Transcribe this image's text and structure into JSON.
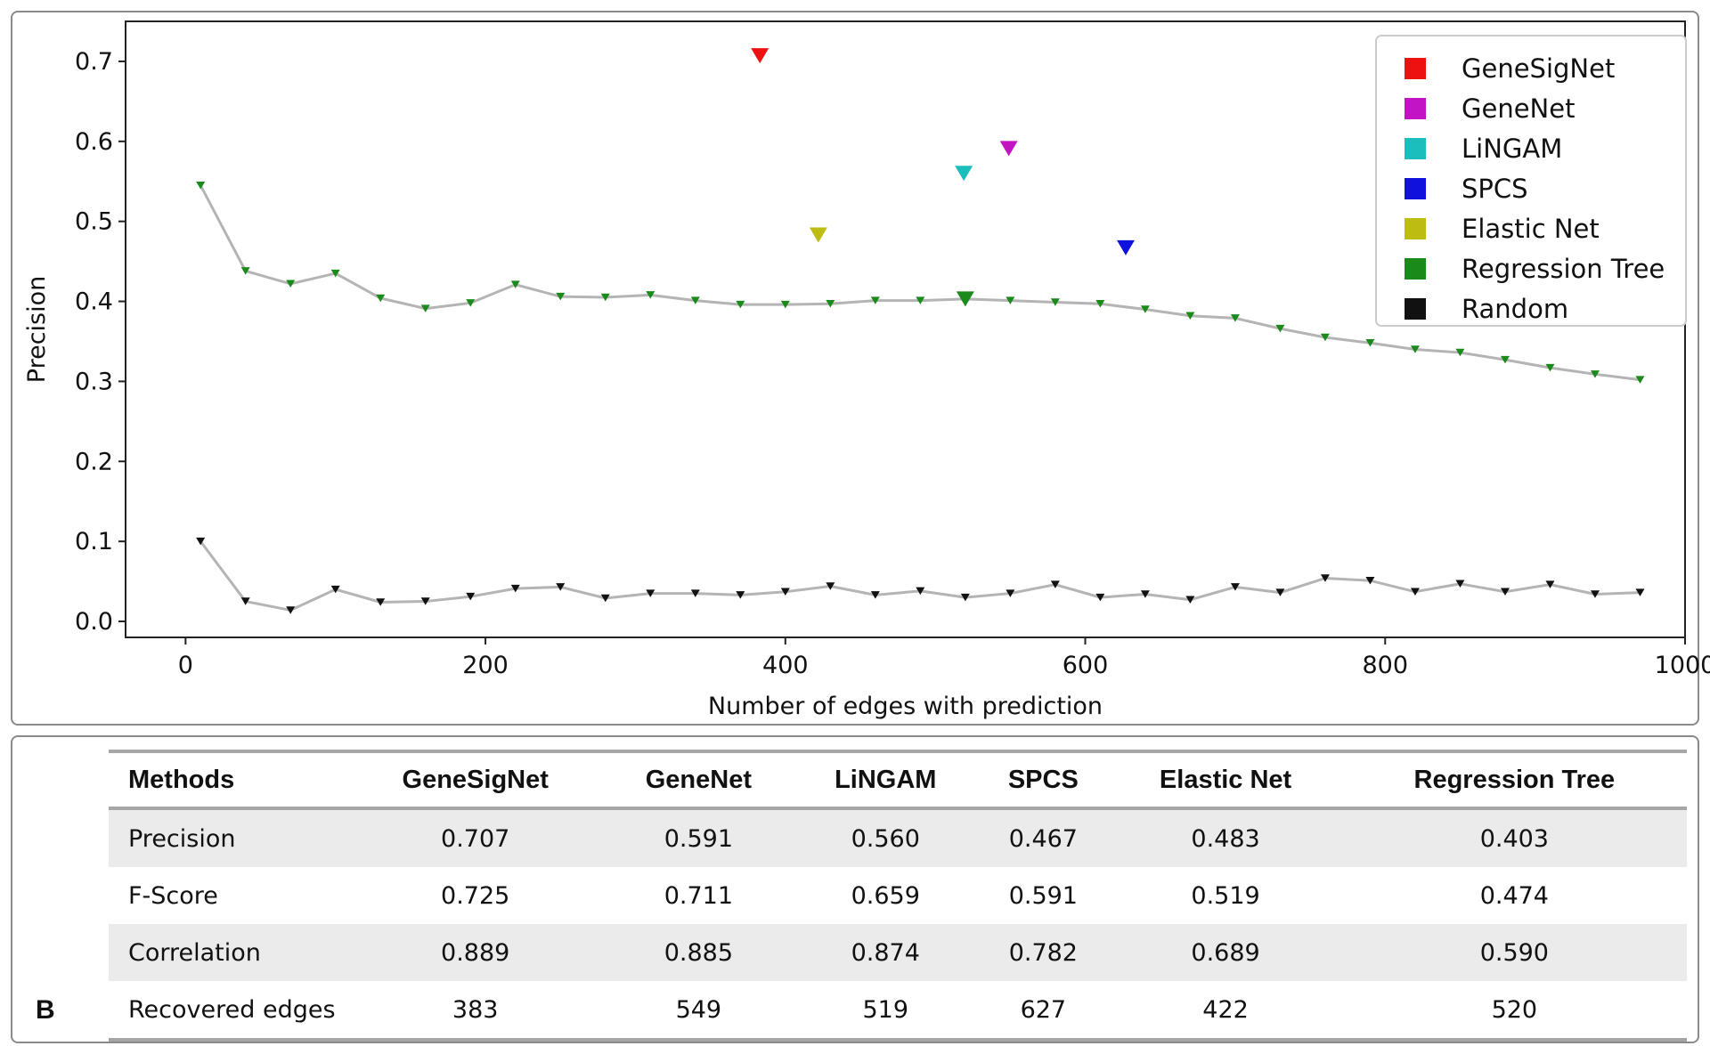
{
  "chart_data": {
    "type": "line",
    "title": "",
    "xlabel": "Number of edges with prediction",
    "ylabel": "Precision",
    "xlim": [
      -40,
      1000
    ],
    "ylim": [
      -0.02,
      0.75
    ],
    "xticks": [
      "0",
      "200",
      "400",
      "600",
      "800",
      "1000"
    ],
    "yticks": [
      "0.0",
      "0.1",
      "0.2",
      "0.3",
      "0.4",
      "0.5",
      "0.6",
      "0.7"
    ],
    "grid": false,
    "legend_position": "top-right",
    "series": [
      {
        "name": "Regression Tree",
        "color": "#1a8a1a",
        "line_color": "#b4b4b4",
        "x": [
          10,
          40,
          70,
          100,
          130,
          160,
          190,
          220,
          250,
          280,
          310,
          340,
          370,
          400,
          430,
          460,
          490,
          520,
          550,
          580,
          610,
          640,
          670,
          700,
          730,
          760,
          790,
          820,
          850,
          880,
          910,
          940,
          970
        ],
        "values": [
          0.545,
          0.438,
          0.422,
          0.435,
          0.404,
          0.391,
          0.398,
          0.421,
          0.406,
          0.405,
          0.408,
          0.401,
          0.396,
          0.396,
          0.397,
          0.401,
          0.401,
          0.403,
          0.401,
          0.399,
          0.397,
          0.39,
          0.382,
          0.379,
          0.366,
          0.355,
          0.348,
          0.34,
          0.336,
          0.327,
          0.317,
          0.309,
          0.302
        ]
      },
      {
        "name": "Random",
        "color": "#111111",
        "line_color": "#b4b4b4",
        "x": [
          10,
          40,
          70,
          100,
          130,
          160,
          190,
          220,
          250,
          280,
          310,
          340,
          370,
          400,
          430,
          460,
          490,
          520,
          550,
          580,
          610,
          640,
          670,
          700,
          730,
          760,
          790,
          820,
          850,
          880,
          910,
          940,
          970
        ],
        "values": [
          0.1,
          0.025,
          0.014,
          0.04,
          0.024,
          0.025,
          0.031,
          0.041,
          0.043,
          0.029,
          0.035,
          0.035,
          0.033,
          0.037,
          0.044,
          0.033,
          0.038,
          0.03,
          0.035,
          0.046,
          0.03,
          0.034,
          0.027,
          0.043,
          0.036,
          0.054,
          0.051,
          0.037,
          0.047,
          0.037,
          0.046,
          0.034,
          0.036
        ]
      }
    ],
    "method_points": [
      {
        "name": "GeneSigNet",
        "x": 383,
        "y": 0.707,
        "color": "#ee1111"
      },
      {
        "name": "GeneNet",
        "x": 549,
        "y": 0.591,
        "color": "#c314c3"
      },
      {
        "name": "LiNGAM",
        "x": 519,
        "y": 0.56,
        "color": "#1cbdbd"
      },
      {
        "name": "SPCS",
        "x": 627,
        "y": 0.467,
        "color": "#1111dd"
      },
      {
        "name": "Elastic Net",
        "x": 422,
        "y": 0.483,
        "color": "#bcbc12"
      },
      {
        "name": "Regression Tree",
        "x": 520,
        "y": 0.403,
        "color": "#1a8a1a"
      }
    ],
    "legend": [
      {
        "label": "GeneSigNet",
        "color": "#ee1111"
      },
      {
        "label": "GeneNet",
        "color": "#c314c3"
      },
      {
        "label": "LiNGAM",
        "color": "#1cbdbd"
      },
      {
        "label": "SPCS",
        "color": "#1111dd"
      },
      {
        "label": "Elastic Net",
        "color": "#bcbc12"
      },
      {
        "label": "Regression Tree",
        "color": "#1a8a1a"
      },
      {
        "label": "Random",
        "color": "#111111"
      }
    ]
  },
  "panel_b": {
    "letter": "B",
    "columns": [
      "Methods",
      "GeneSigNet",
      "GeneNet",
      "LiNGAM",
      "SPCS",
      "Elastic Net",
      "Regression Tree"
    ],
    "rows": [
      [
        "Precision",
        "0.707",
        "0.591",
        "0.560",
        "0.467",
        "0.483",
        "0.403"
      ],
      [
        "F-Score",
        "0.725",
        "0.711",
        "0.659",
        "0.591",
        "0.519",
        "0.474"
      ],
      [
        "Correlation",
        "0.889",
        "0.885",
        "0.874",
        "0.782",
        "0.689",
        "0.590"
      ],
      [
        "Recovered edges",
        "383",
        "549",
        "519",
        "627",
        "422",
        "520"
      ]
    ]
  }
}
